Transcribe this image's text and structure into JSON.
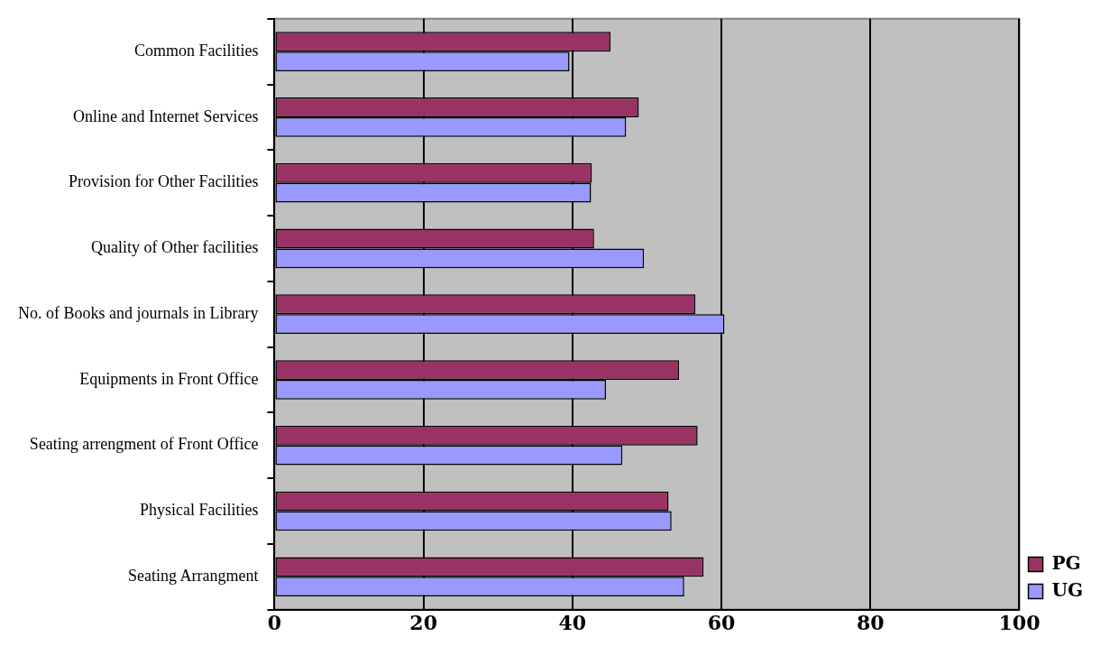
{
  "chart_data": {
    "type": "bar",
    "orientation": "horizontal",
    "categories": [
      "Common Facilities",
      "Online and Internet Services",
      "Provision for Other Facilities",
      "Quality of Other facilities",
      "No. of Books and journals in Library",
      "Equipments in Front Office",
      "Seating arrengment of Front Office",
      "Physical Facilities",
      "Seating Arrangment"
    ],
    "series": [
      {
        "name": "PG",
        "color": "#993366",
        "values": [
          45.1,
          48.9,
          42.6,
          42.9,
          56.5,
          54.3,
          56.8,
          52.9,
          57.6
        ]
      },
      {
        "name": "UG",
        "color": "#9999ff",
        "values": [
          39.6,
          47.2,
          42.5,
          49.6,
          60.4,
          44.5,
          46.7,
          53.3,
          55.0
        ]
      }
    ],
    "xlim": [
      0,
      100
    ],
    "xticks": [
      0,
      20,
      40,
      60,
      80,
      100
    ],
    "grid": "x",
    "legend": "bottom right"
  }
}
